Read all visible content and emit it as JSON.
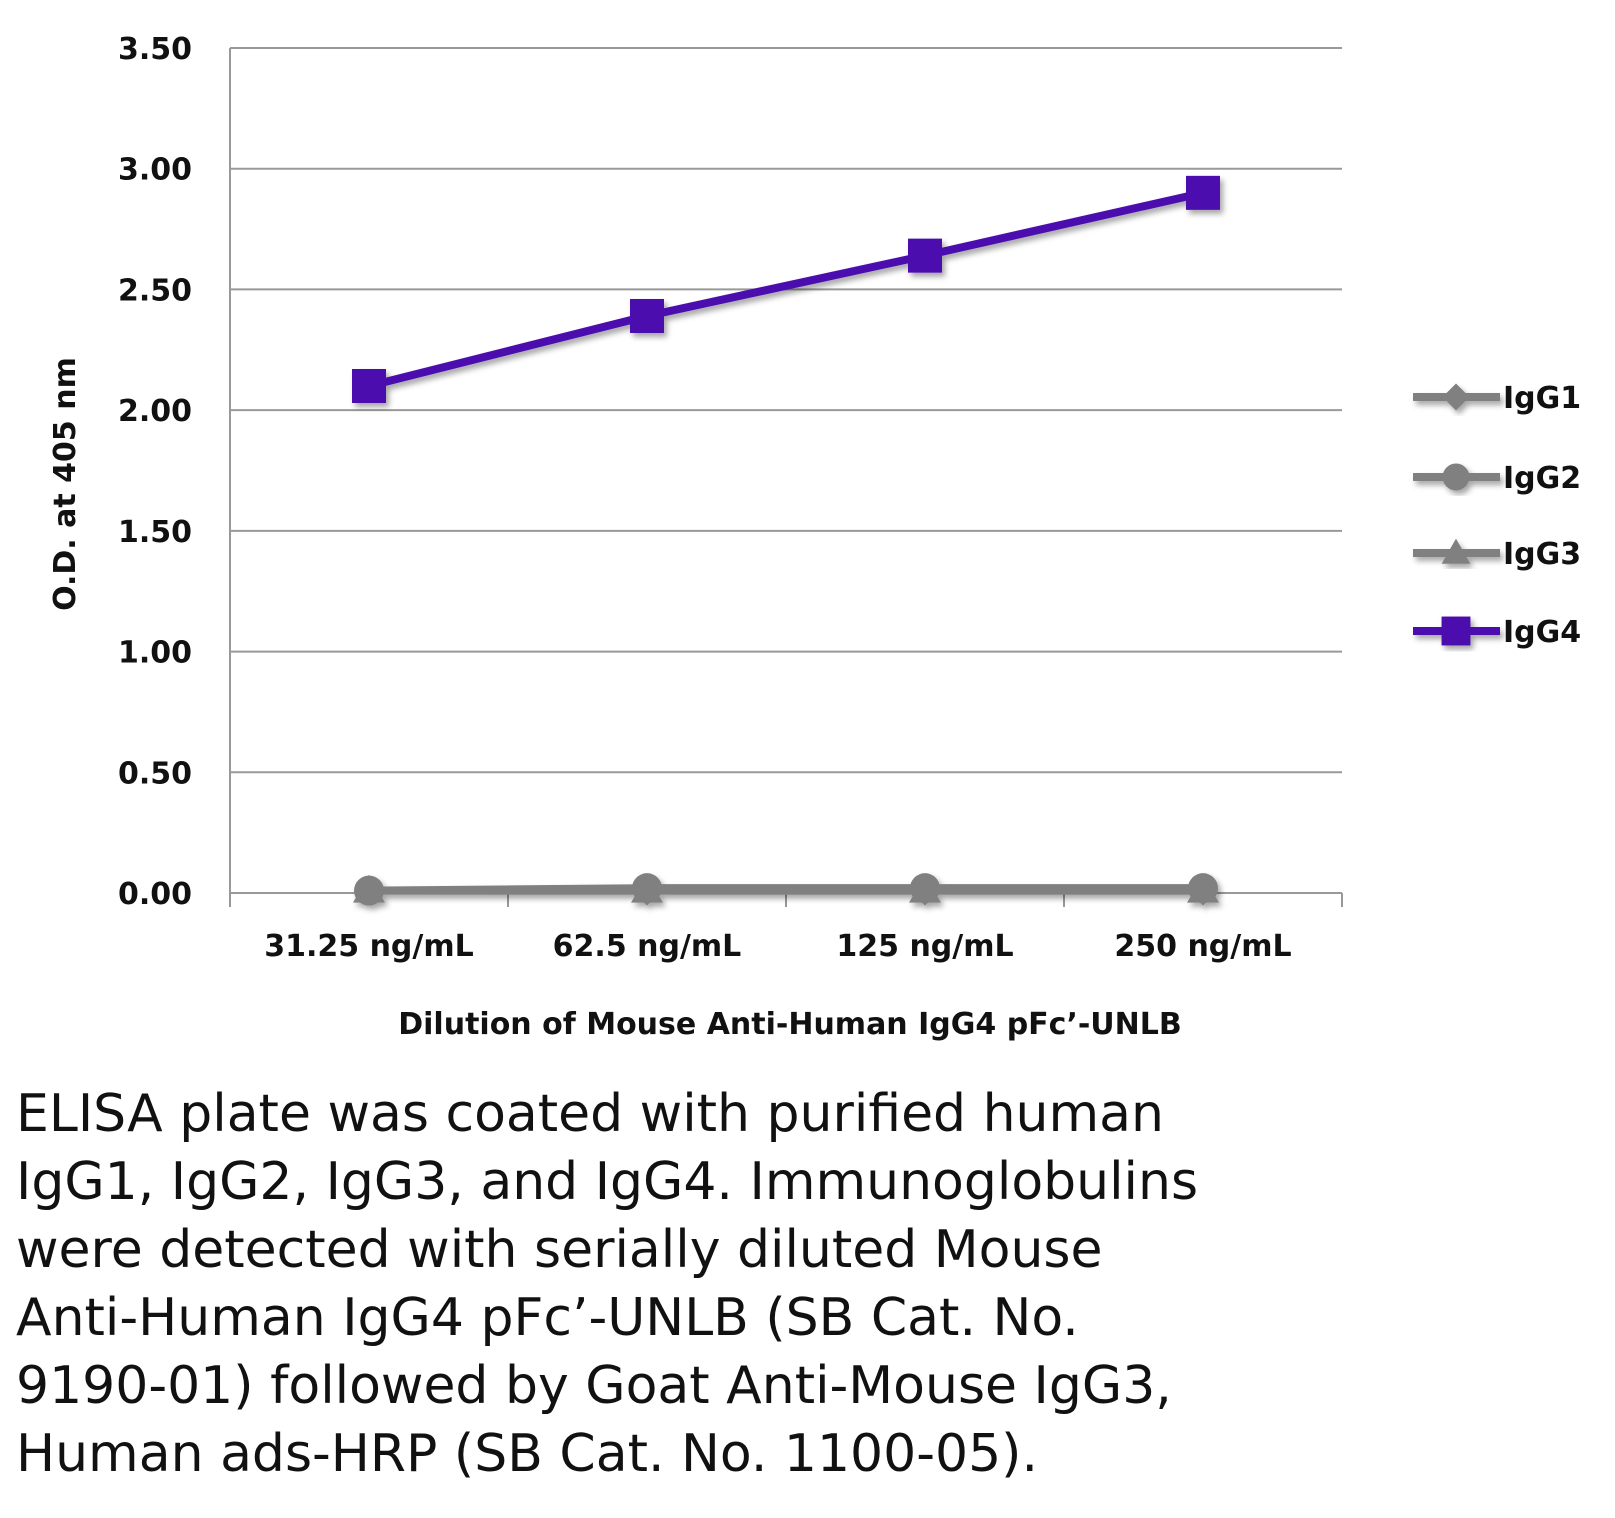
{
  "chart_data": {
    "type": "line",
    "title": "",
    "xlabel": "Dilution of Mouse Anti-Human IgG4 pFc’-UNLB",
    "ylabel": "O.D. at 405 nm",
    "categories": [
      "31.25 ng/mL",
      "62.5 ng/mL",
      "125 ng/mL",
      "250 ng/mL"
    ],
    "ylim": [
      0,
      3.5
    ],
    "yticks": [
      "0.00",
      "0.50",
      "1.00",
      "1.50",
      "2.00",
      "2.50",
      "3.00",
      "3.50"
    ],
    "grid": "horizontal",
    "legend_position": "right",
    "series": [
      {
        "name": "IgG1",
        "values": [
          0.01,
          0.01,
          0.01,
          0.01
        ],
        "marker": "diamond",
        "color": "#808080"
      },
      {
        "name": "IgG2",
        "values": [
          0.01,
          0.02,
          0.02,
          0.02
        ],
        "marker": "circle",
        "color": "#808080"
      },
      {
        "name": "IgG3",
        "values": [
          0.01,
          0.01,
          0.01,
          0.01
        ],
        "marker": "triangle",
        "color": "#808080"
      },
      {
        "name": "IgG4",
        "values": [
          2.1,
          2.39,
          2.64,
          2.9
        ],
        "marker": "square",
        "color": "#4B0BAE"
      }
    ]
  },
  "caption": "ELISA plate was coated with purified human\nIgG1, IgG2, IgG3, and IgG4.  Immunoglobulins\nwere detected with serially diluted Mouse\nAnti-Human IgG4 pFc’-UNLB (SB Cat. No.\n9190-01) followed by Goat Anti-Mouse IgG3,\nHuman ads-HRP (SB Cat. No. 1100-05)."
}
